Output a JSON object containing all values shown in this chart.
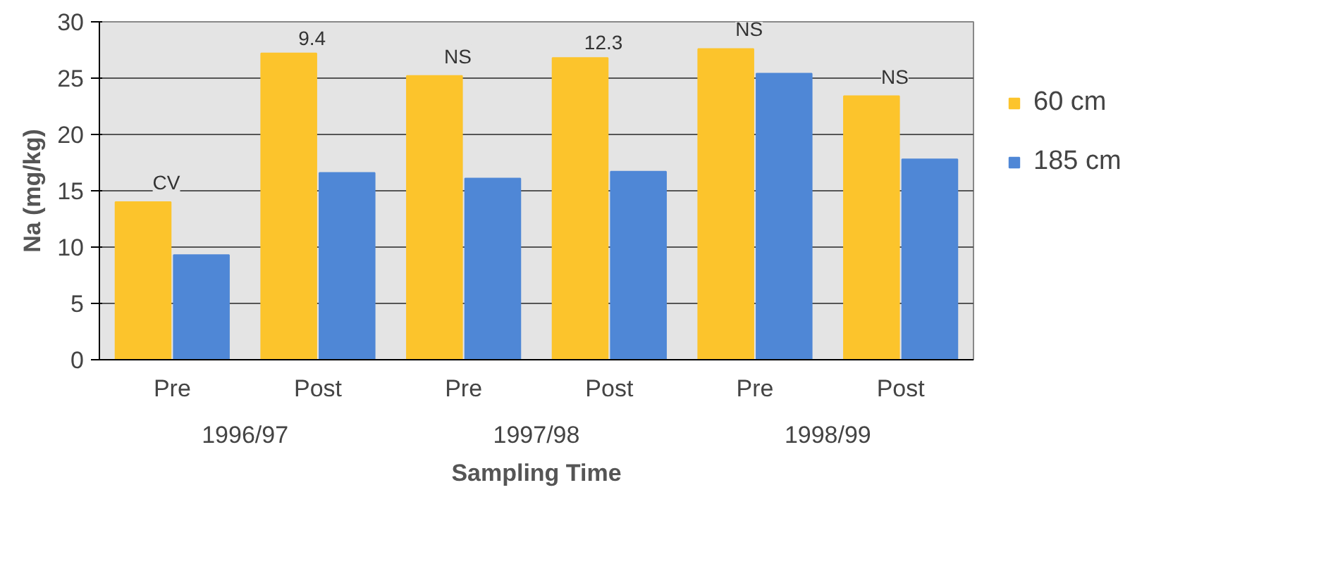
{
  "chart_data": {
    "type": "bar",
    "xlabel": "Sampling Time",
    "ylabel": "Na (mg/kg)",
    "categories": [
      "Pre",
      "Post",
      "Pre",
      "Post",
      "Pre",
      "Post"
    ],
    "series": [
      {
        "name": "60 cm",
        "color": "#fcc42c",
        "values": [
          14,
          27.2,
          25.2,
          26.8,
          27.6,
          23.4
        ]
      },
      {
        "name": "185 cm",
        "color": "#4f87d6",
        "values": [
          9.3,
          16.6,
          16.1,
          16.7,
          25.4,
          17.8
        ]
      }
    ],
    "annotations": [
      "CV",
      "9.4",
      "NS",
      "12.3",
      "NS",
      "NS",
      "1996/97",
      "1997/98",
      "1998/99"
    ],
    "ylim": [
      0,
      30
    ],
    "yticks": [
      0,
      5,
      10,
      15,
      20,
      25,
      30
    ],
    "grid": "y",
    "legend": "right"
  }
}
